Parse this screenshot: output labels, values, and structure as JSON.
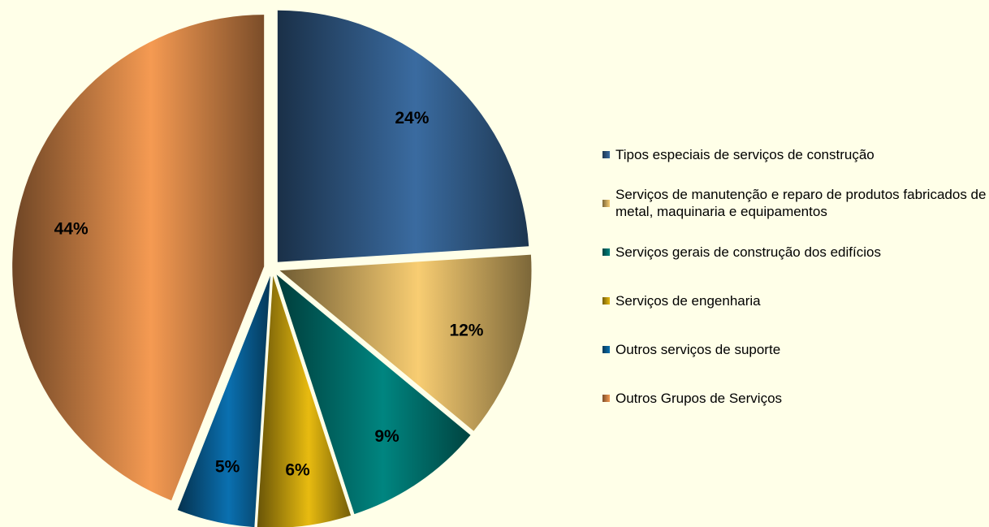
{
  "chart_data": {
    "type": "pie",
    "categories": [
      "Tipos especiais de serviços de construção",
      "Serviços de manutenção e reparo de produtos fabricados de metal, maquinaria e equipamentos",
      "Serviços gerais de construção dos edifícios",
      "Serviços de engenharia",
      "Outros serviços de suporte",
      "Outros Grupos de Serviços"
    ],
    "values": [
      24,
      12,
      9,
      6,
      5,
      44
    ],
    "value_labels": [
      "24%",
      "12%",
      "9%",
      "6%",
      "5%",
      "44%"
    ],
    "colors": [
      "#3a6ba0",
      "#f8cd72",
      "#008580",
      "#e8bb10",
      "#0a70b0",
      "#f59a52"
    ],
    "legend": "right"
  }
}
